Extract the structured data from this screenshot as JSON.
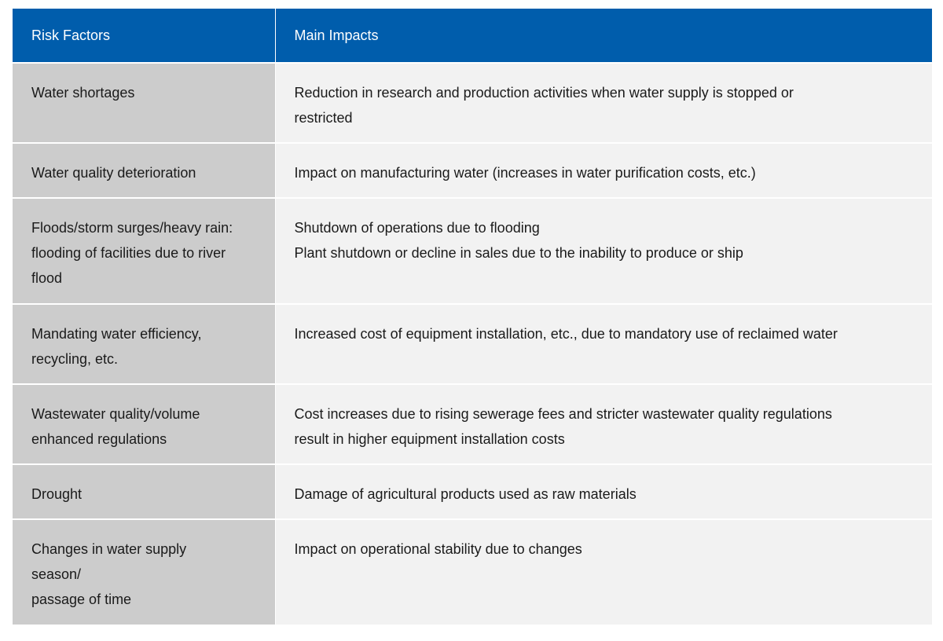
{
  "header": {
    "risk_factors": "Risk Factors",
    "main_impacts": "Main Impacts"
  },
  "rows": [
    {
      "factor": [
        "Water shortages"
      ],
      "impact": [
        "Reduction in research and production activities when water supply is stopped or",
        "restricted"
      ]
    },
    {
      "factor": [
        "Water quality deterioration"
      ],
      "impact": [
        "Impact on manufacturing water (increases in water purification costs, etc.)"
      ]
    },
    {
      "factor": [
        "Floods/storm surges/heavy rain:",
        "flooding of facilities due to river",
        "flood"
      ],
      "impact": [
        "Shutdown of operations due to flooding",
        "Plant shutdown or decline in sales due to the inability to produce or ship"
      ]
    },
    {
      "factor": [
        "Mandating water efficiency,",
        "recycling, etc."
      ],
      "impact": [
        "Increased cost of equipment installation, etc., due to mandatory use of reclaimed water"
      ]
    },
    {
      "factor": [
        "Wastewater quality/volume",
        "enhanced regulations"
      ],
      "impact": [
        "Cost increases due to rising sewerage fees and stricter wastewater quality regulations",
        "result in higher equipment installation costs"
      ]
    },
    {
      "factor": [
        "Drought"
      ],
      "impact": [
        "Damage of agricultural products used as raw materials"
      ]
    },
    {
      "factor": [
        "Changes in water supply",
        "season/",
        "passage of time"
      ],
      "impact": [
        "Impact on operational stability due to changes"
      ]
    }
  ],
  "colors": {
    "header_bg": "#005dac",
    "factor_bg": "#cccccc",
    "impact_bg": "#f2f2f2"
  }
}
